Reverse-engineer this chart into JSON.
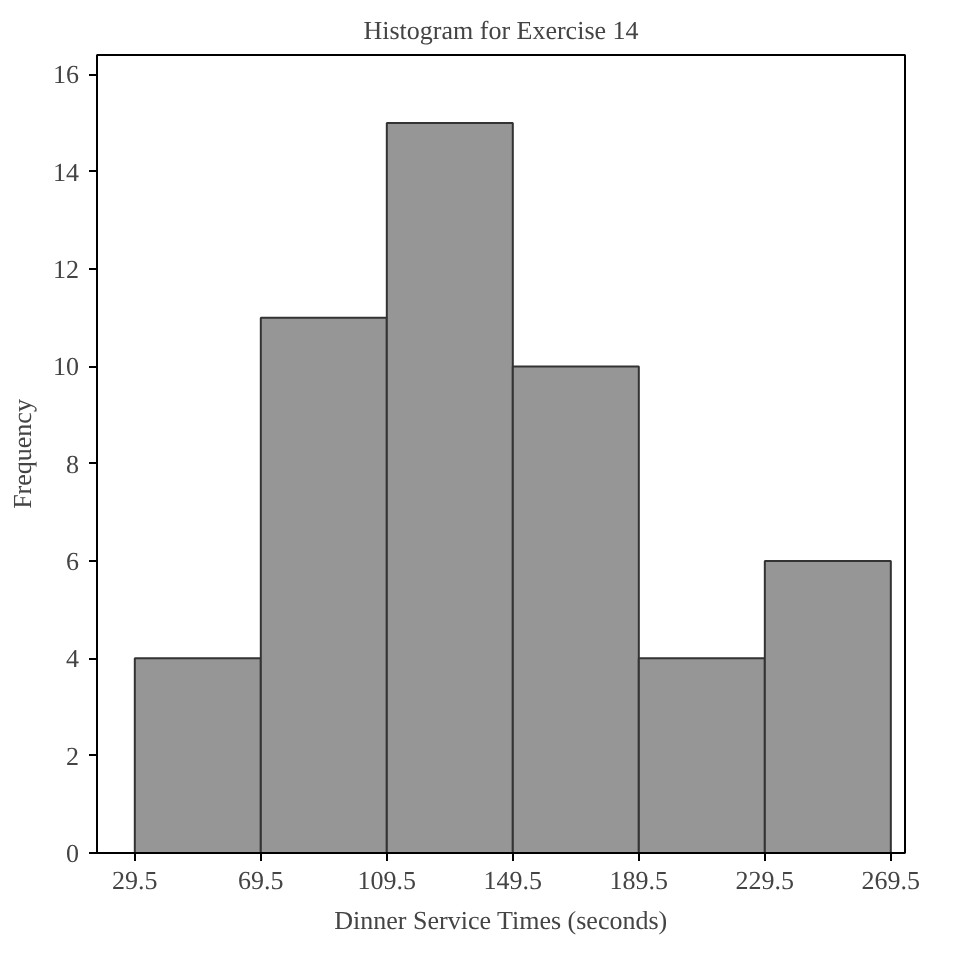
{
  "chart_data": {
    "type": "histogram",
    "title": "Histogram for Exercise 14",
    "xlabel": "Dinner Service Times (seconds)",
    "ylabel": "Frequency",
    "bins": [
      29.5,
      69.5,
      109.5,
      149.5,
      189.5,
      229.5,
      269.5
    ],
    "values": [
      4,
      11,
      15,
      10,
      4,
      6
    ],
    "color": "#969696",
    "xlim": [
      17.5,
      274
    ],
    "xticks": [
      29.5,
      69.5,
      109.5,
      149.5,
      189.5,
      229.5,
      269.5
    ],
    "ylim": [
      0,
      16.4
    ],
    "yticks": [
      0,
      2,
      4,
      6,
      8,
      10,
      12,
      14,
      16
    ],
    "grid": false
  }
}
